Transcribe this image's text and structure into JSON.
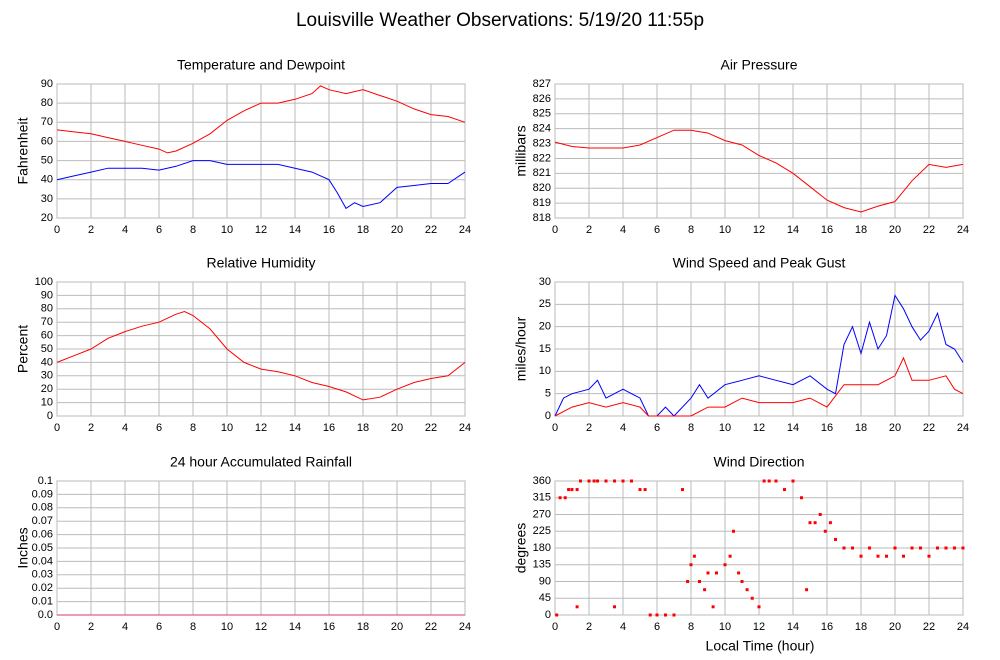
{
  "title": "Louisville Weather Observations: 5/19/20 11:55p",
  "xlabel": "Local Time (hour)",
  "chart_data": [
    {
      "type": "line",
      "title": "Temperature and Dewpoint",
      "ylabel": "Fahrenheit",
      "xlim": [
        0,
        24
      ],
      "xticks": [
        0,
        2,
        4,
        6,
        8,
        10,
        12,
        14,
        16,
        18,
        20,
        22,
        24
      ],
      "ylim": [
        20,
        90
      ],
      "yticks": [
        20,
        30,
        40,
        50,
        60,
        70,
        80,
        90
      ],
      "grid": true,
      "series": [
        {
          "color": "#ff0000",
          "x": [
            0,
            1,
            2,
            3,
            4,
            5,
            6,
            6.5,
            7,
            8,
            9,
            10,
            11,
            12,
            13,
            14,
            15,
            15.5,
            16,
            17,
            18,
            19,
            20,
            21,
            22,
            23,
            24
          ],
          "values": [
            66,
            65,
            64,
            62,
            60,
            58,
            56,
            54,
            55,
            59,
            64,
            71,
            76,
            80,
            80,
            82,
            85,
            89,
            87,
            85,
            87,
            84,
            81,
            77,
            74,
            73,
            70
          ]
        },
        {
          "color": "#0000ff",
          "x": [
            0,
            1,
            2,
            3,
            4,
            5,
            6,
            7,
            8,
            9,
            10,
            11,
            12,
            13,
            14,
            15,
            16,
            16.5,
            17,
            17.5,
            18,
            19,
            20,
            21,
            22,
            23,
            24
          ],
          "values": [
            40,
            42,
            44,
            46,
            46,
            46,
            45,
            47,
            50,
            50,
            48,
            48,
            48,
            48,
            46,
            44,
            40,
            33,
            25,
            28,
            26,
            28,
            36,
            37,
            38,
            38,
            44
          ]
        }
      ]
    },
    {
      "type": "line",
      "title": "Air Pressure",
      "ylabel": "millibars",
      "xlim": [
        0,
        24
      ],
      "xticks": [
        0,
        2,
        4,
        6,
        8,
        10,
        12,
        14,
        16,
        18,
        20,
        22,
        24
      ],
      "ylim": [
        818,
        827
      ],
      "yticks": [
        818,
        819,
        820,
        821,
        822,
        823,
        824,
        825,
        826,
        827
      ],
      "grid": true,
      "series": [
        {
          "color": "#ff0000",
          "x": [
            0,
            1,
            2,
            3,
            4,
            5,
            6,
            7,
            8,
            9,
            10,
            11,
            12,
            13,
            14,
            15,
            16,
            17,
            18,
            19,
            20,
            21,
            22,
            23,
            24
          ],
          "values": [
            823.1,
            822.8,
            822.7,
            822.7,
            822.7,
            822.9,
            823.4,
            823.9,
            823.9,
            823.7,
            823.2,
            822.9,
            822.2,
            821.7,
            821,
            820.1,
            819.2,
            818.7,
            818.4,
            818.8,
            819.1,
            820.5,
            821.6,
            821.4,
            821.6
          ]
        }
      ]
    },
    {
      "type": "line",
      "title": "Relative Humidity",
      "ylabel": "Percent",
      "xlim": [
        0,
        24
      ],
      "xticks": [
        0,
        2,
        4,
        6,
        8,
        10,
        12,
        14,
        16,
        18,
        20,
        22,
        24
      ],
      "ylim": [
        0,
        100
      ],
      "yticks": [
        0,
        10,
        20,
        30,
        40,
        50,
        60,
        70,
        80,
        90,
        100
      ],
      "grid": true,
      "series": [
        {
          "color": "#ff0000",
          "x": [
            0,
            1,
            2,
            3,
            4,
            5,
            6,
            7,
            7.5,
            8,
            9,
            10,
            11,
            12,
            13,
            14,
            15,
            16,
            17,
            18,
            19,
            20,
            21,
            22,
            23,
            24
          ],
          "values": [
            40,
            45,
            50,
            58,
            63,
            67,
            70,
            76,
            78,
            75,
            65,
            50,
            40,
            35,
            33,
            30,
            25,
            22,
            18,
            12,
            14,
            20,
            25,
            28,
            30,
            40
          ]
        }
      ]
    },
    {
      "type": "line",
      "title": "Wind Speed and Peak Gust",
      "ylabel": "miles/hour",
      "xlim": [
        0,
        24
      ],
      "xticks": [
        0,
        2,
        4,
        6,
        8,
        10,
        12,
        14,
        16,
        18,
        20,
        22,
        24
      ],
      "ylim": [
        0,
        30
      ],
      "yticks": [
        0,
        5,
        10,
        15,
        20,
        25,
        30
      ],
      "grid": true,
      "series": [
        {
          "color": "#0000ff",
          "x": [
            0,
            0.5,
            1,
            2,
            2.5,
            3,
            4,
            5,
            5.5,
            6,
            6.5,
            7,
            8,
            8.5,
            9,
            10,
            11,
            12,
            13,
            14,
            15,
            16,
            16.5,
            17,
            17.5,
            18,
            18.5,
            19,
            19.5,
            20,
            20.5,
            21,
            21.5,
            22,
            22.5,
            23,
            23.5,
            24
          ],
          "values": [
            0,
            4,
            5,
            6,
            8,
            4,
            6,
            4,
            0,
            0,
            2,
            0,
            4,
            7,
            4,
            7,
            8,
            9,
            8,
            7,
            9,
            6,
            5,
            16,
            20,
            14,
            21,
            15,
            18,
            27,
            24,
            20,
            17,
            19,
            23,
            16,
            15,
            12
          ]
        },
        {
          "color": "#ff0000",
          "x": [
            0,
            1,
            2,
            3,
            4,
            5,
            5.5,
            8,
            9,
            10,
            11,
            12,
            13,
            14,
            15,
            16,
            17,
            18,
            19,
            20,
            20.5,
            21,
            22,
            23,
            23.5,
            24
          ],
          "values": [
            0,
            2,
            3,
            2,
            3,
            2,
            0,
            0,
            2,
            2,
            4,
            3,
            3,
            3,
            4,
            2,
            7,
            7,
            7,
            9,
            13,
            8,
            8,
            9,
            6,
            5
          ]
        }
      ]
    },
    {
      "type": "line",
      "title": "24 hour Accumulated Rainfall",
      "ylabel": "Inches",
      "xlim": [
        0,
        24
      ],
      "xticks": [
        0,
        2,
        4,
        6,
        8,
        10,
        12,
        14,
        16,
        18,
        20,
        22,
        24
      ],
      "ylim": [
        0,
        0.1
      ],
      "yticks": [
        {
          "value": 0,
          "label": "0.0"
        },
        0.01,
        0.02,
        0.03,
        0.04,
        0.05,
        0.06,
        0.07,
        0.08,
        0.09,
        0.1
      ],
      "grid": true,
      "series": [
        {
          "color": "#e0307a",
          "x": [
            0,
            24
          ],
          "values": [
            0,
            0
          ]
        }
      ]
    },
    {
      "type": "scatter",
      "title": "Wind Direction",
      "ylabel": "degrees",
      "color": "#ff0000",
      "xlim": [
        0,
        24
      ],
      "xticks": [
        0,
        2,
        4,
        6,
        8,
        10,
        12,
        14,
        16,
        18,
        20,
        22,
        24
      ],
      "ylim": [
        0,
        360
      ],
      "yticks": [
        0,
        45,
        90,
        135,
        180,
        225,
        270,
        315,
        360
      ],
      "grid": true,
      "x": [
        0.1,
        0.3,
        0.6,
        0.8,
        1,
        1.3,
        1.3,
        1.5,
        2,
        2.3,
        2.5,
        3,
        3.5,
        3.5,
        4,
        4.5,
        5,
        5.3,
        5.6,
        6,
        6.5,
        7,
        7.5,
        7.8,
        8,
        8.2,
        8.5,
        8.8,
        9,
        9.3,
        9.5,
        10,
        10.3,
        10.5,
        10.8,
        11,
        11.3,
        11.6,
        12,
        12.3,
        12.6,
        13,
        13.5,
        14,
        14.5,
        14.8,
        15,
        15.3,
        15.6,
        15.9,
        16.2,
        16.5,
        17,
        17.5,
        18,
        18.5,
        19,
        19.5,
        20,
        20.5,
        21,
        21.5,
        22,
        22.5,
        23,
        23.5,
        24
      ],
      "values": [
        0,
        315,
        315,
        337,
        337,
        337,
        22,
        360,
        360,
        360,
        360,
        360,
        360,
        22,
        360,
        360,
        337,
        337,
        0,
        0,
        0,
        0,
        337,
        90,
        135,
        158,
        90,
        68,
        113,
        22,
        113,
        135,
        158,
        225,
        113,
        90,
        68,
        45,
        22,
        360,
        360,
        360,
        337,
        360,
        315,
        68,
        248,
        248,
        270,
        225,
        248,
        203,
        180,
        180,
        158,
        180,
        158,
        158,
        180,
        158,
        180,
        180,
        158,
        180,
        180,
        180,
        180
      ]
    }
  ]
}
